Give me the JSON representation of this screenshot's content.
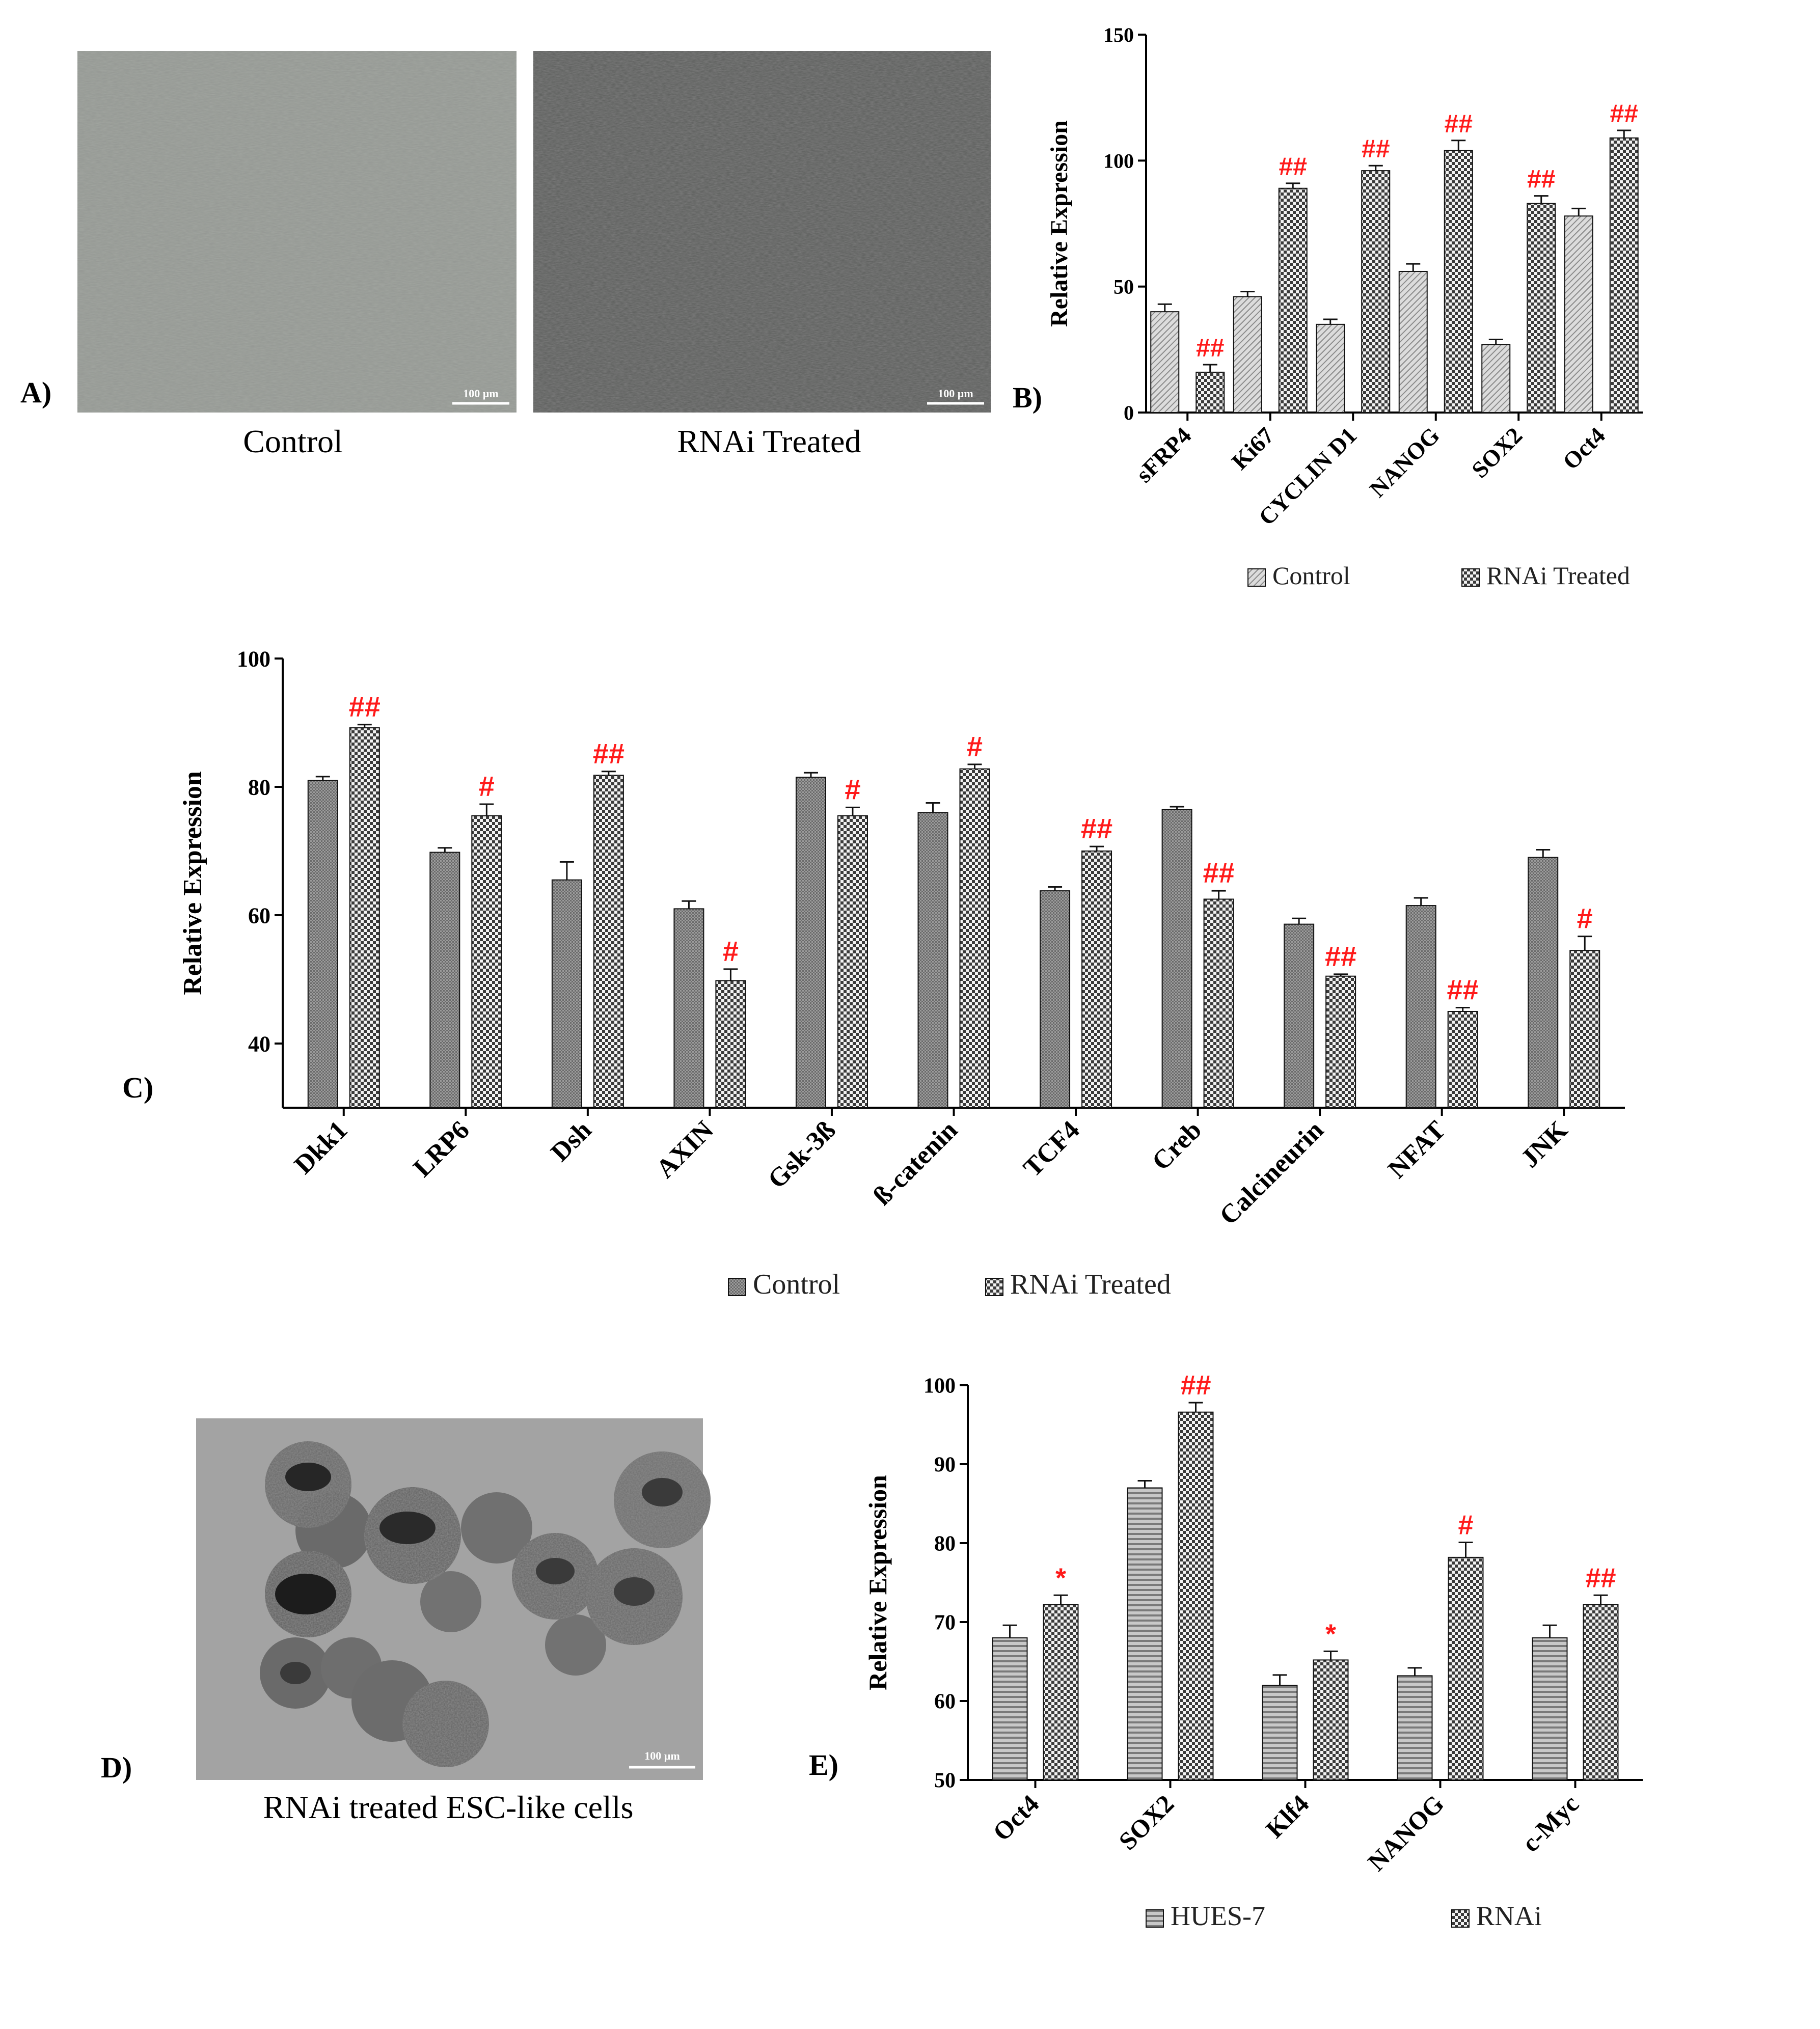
{
  "panel_a": {
    "letter": "A)",
    "caption_left": "Control",
    "caption_right": "RNAi  Treated",
    "scale_left": "100 µm",
    "scale_right": "100 µm"
  },
  "panel_d": {
    "letter": "D)",
    "caption": "RNAi treated ESC-like cells",
    "scale": "100 µm"
  },
  "colors": {
    "significance": "#ff1a1a",
    "axis": "#000000",
    "control_fill_b": "#d8d8d8",
    "control_fill_c": "#9a9a9a",
    "treated_fill": "#6f6f6f",
    "hues_fill": "#b8b8b8"
  },
  "chart_data": [
    {
      "id": "B",
      "letter": "B)",
      "type": "bar",
      "ylabel": "Relative Expression",
      "ylim": [
        0,
        150
      ],
      "yticks": [
        0,
        50,
        100,
        150
      ],
      "categories": [
        "sFRP4",
        "Ki67",
        "CYCLIN D1",
        "NANOG",
        "SOX2",
        "Oct4"
      ],
      "series": [
        {
          "name": "Control",
          "pattern": "diag",
          "values": [
            40,
            46,
            35,
            56,
            27,
            78
          ],
          "errors": [
            3,
            2,
            2,
            3,
            2,
            3
          ]
        },
        {
          "name": "RNAi Treated",
          "pattern": "check",
          "values": [
            16,
            89,
            96,
            104,
            83,
            109
          ],
          "errors": [
            3,
            2,
            2,
            4,
            3,
            3
          ]
        }
      ],
      "annotations": [
        "##",
        "##",
        "##",
        "##",
        "##",
        "##"
      ],
      "legend": [
        "Control",
        "RNAi Treated"
      ],
      "legend_position": "bottom",
      "grid": false
    },
    {
      "id": "C",
      "letter": "C)",
      "type": "bar",
      "ylabel": "Relative Expression",
      "ylim": [
        30,
        100
      ],
      "yticks": [
        40,
        60,
        80,
        100
      ],
      "categories": [
        "Dkk1",
        "LRP6",
        "Dsh",
        "AXIN",
        "Gsk-3ß",
        "ß-catenin",
        "TCF4",
        "Creb",
        "Calcineurin",
        "NFAT",
        "JNK"
      ],
      "series": [
        {
          "name": "Control",
          "pattern": "fine",
          "values": [
            81,
            69.8,
            65.5,
            61,
            81.5,
            76,
            63.8,
            76.5,
            58.6,
            61.5,
            69
          ],
          "errors": [
            0.6,
            0.7,
            2.8,
            1.2,
            0.7,
            1.5,
            0.6,
            0.4,
            0.9,
            1.2,
            1.2
          ]
        },
        {
          "name": "RNAi  Treated",
          "pattern": "check",
          "values": [
            89.2,
            75.5,
            81.8,
            49.8,
            75.5,
            82.8,
            70,
            62.5,
            50.5,
            45,
            54.5
          ],
          "errors": [
            0.5,
            1.8,
            0.6,
            1.8,
            1.3,
            0.7,
            0.7,
            1.3,
            0.3,
            0.6,
            2.2
          ]
        }
      ],
      "annotations": [
        "##",
        "#",
        "##",
        "#",
        "#",
        "#",
        "##",
        "##",
        "##",
        "##",
        "#"
      ],
      "legend": [
        "Control",
        "RNAi  Treated"
      ],
      "legend_position": "bottom",
      "grid": false
    },
    {
      "id": "E",
      "letter": "E)",
      "type": "bar",
      "ylabel": "Relative Expression",
      "ylim": [
        50,
        100
      ],
      "yticks": [
        50,
        60,
        70,
        80,
        90,
        100
      ],
      "categories": [
        "Oct4",
        "SOX2",
        "Klf4",
        "NANOG",
        "c-Myc"
      ],
      "series": [
        {
          "name": "HUES-7",
          "pattern": "hstripe",
          "values": [
            68,
            87,
            62,
            63.2,
            68
          ],
          "errors": [
            1.6,
            0.9,
            1.3,
            1,
            1.6
          ]
        },
        {
          "name": "RNAi",
          "pattern": "check",
          "values": [
            72.2,
            96.6,
            65.2,
            78.2,
            72.2
          ],
          "errors": [
            1.2,
            1.2,
            1.1,
            1.9,
            1.2
          ]
        }
      ],
      "annotations": [
        "*",
        "##",
        "*",
        "#",
        "##"
      ],
      "legend": [
        "HUES-7",
        "RNAi"
      ],
      "legend_position": "bottom",
      "grid": false
    }
  ]
}
